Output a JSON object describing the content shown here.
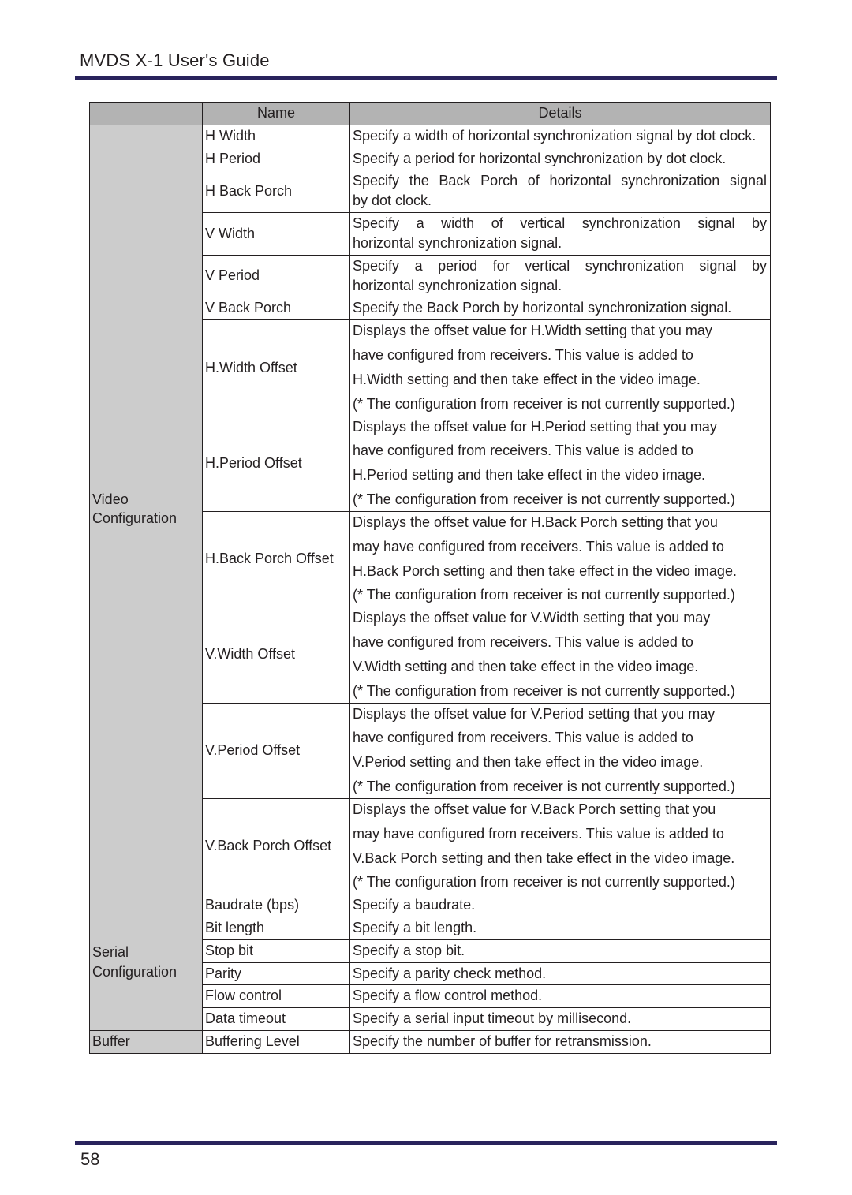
{
  "doc_title": "MVDS X-1 User's Guide",
  "page_number": "58",
  "colors": {
    "rule": "#29235c",
    "header_bg": "#b3b3b3",
    "cat_bg": "#cccccc",
    "border": "#231f20",
    "text": "#231f20"
  },
  "headers": {
    "cat": "",
    "name": "Name",
    "details": "Details"
  },
  "sections": [
    {
      "category": "Video Configuration",
      "rows": [
        {
          "name": "H Width",
          "details": [
            "Specify a width of horizontal synchronization signal by dot clock."
          ]
        },
        {
          "name": "H Period",
          "details": [
            "Specify a period for horizontal synchronization by dot clock."
          ]
        },
        {
          "name": "H Back Porch",
          "details": [
            "Specify the Back Porch of horizontal synchronization signal",
            "by dot clock."
          ],
          "first_full": true
        },
        {
          "name": "V Width",
          "details": [
            "Specify a width of vertical synchronization signal by",
            "horizontal synchronization signal."
          ],
          "first_full": true
        },
        {
          "name": "V Period",
          "details": [
            "Specify a period for vertical synchronization signal by",
            "horizontal synchronization signal."
          ],
          "first_full": true
        },
        {
          "name": "V Back Porch",
          "details": [
            "Specify the Back Porch by horizontal synchronization signal."
          ]
        },
        {
          "name": "H.Width Offset",
          "details": [
            "Displays the offset value for H.Width setting that you may",
            "have configured from receivers. This value is added to",
            "H.Width setting and then take effect in the video image.",
            "(* The configuration from receiver is not currently supported.)"
          ],
          "spaced": true
        },
        {
          "name": "H.Period Offset",
          "details": [
            "Displays the offset value for H.Period setting that you may",
            "have configured from receivers. This value is added to",
            "H.Period setting and then take effect in the video image.",
            "(* The configuration from receiver is not currently supported.)"
          ],
          "spaced": true
        },
        {
          "name": "H.Back Porch Offset",
          "details": [
            "Displays the offset value for H.Back Porch setting that you",
            "may have configured from receivers. This value is added to",
            "H.Back Porch setting and then take effect in the video image.",
            "(* The configuration from receiver is not currently supported.)"
          ],
          "spaced": true
        },
        {
          "name": "V.Width Offset",
          "details": [
            "Displays the offset value for V.Width setting that you may",
            "have configured from receivers. This value is added to",
            "V.Width setting and then take effect in the video image.",
            "(* The configuration from receiver is not currently supported.)"
          ],
          "spaced": true
        },
        {
          "name": "V.Period Offset",
          "details": [
            "Displays the offset value for V.Period setting that you may",
            "have configured from receivers. This value is added to",
            "V.Period setting and then take effect in the video image.",
            "(* The configuration from receiver is not currently supported.)"
          ],
          "spaced": true
        },
        {
          "name": "V.Back Porch Offset",
          "details": [
            "Displays the offset value for V.Back Porch setting that you",
            "may have configured from receivers. This value is added to",
            "V.Back Porch setting and then take effect in the video image.",
            "(* The configuration from receiver is not currently supported.)"
          ],
          "spaced": true
        }
      ]
    },
    {
      "category": "Serial Configuration",
      "rows": [
        {
          "name": "Baudrate (bps)",
          "details": [
            "Specify a baudrate."
          ]
        },
        {
          "name": "Bit length",
          "details": [
            "Specify a bit length."
          ]
        },
        {
          "name": "Stop bit",
          "details": [
            "Specify a stop bit."
          ]
        },
        {
          "name": "Parity",
          "details": [
            "Specify a parity check method."
          ]
        },
        {
          "name": "Flow control",
          "details": [
            "Specify a flow control method."
          ]
        },
        {
          "name": "Data timeout",
          "details": [
            "Specify a serial input timeout by millisecond."
          ]
        }
      ]
    },
    {
      "category": "Buffer",
      "rows": [
        {
          "name": "Buffering Level",
          "details": [
            "Specify the number of buffer for retransmission."
          ]
        }
      ]
    }
  ]
}
